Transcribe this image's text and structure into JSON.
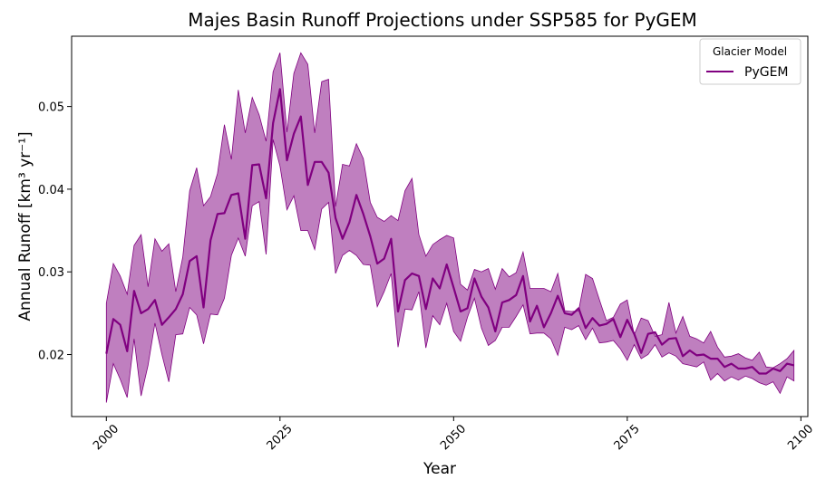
{
  "chart_data": {
    "type": "line",
    "title": "Majes Basin Runoff Projections under SSP585 for PyGEM",
    "xlabel": "Year",
    "ylabel": "Annual Runoff [km³ yr⁻¹]",
    "xlim": [
      1995,
      2101
    ],
    "ylim": [
      0.0125,
      0.0585
    ],
    "xticks": [
      2000,
      2025,
      2050,
      2075,
      2100
    ],
    "xtick_labels": [
      "2000",
      "2025",
      "2050",
      "2075",
      "2100"
    ],
    "yticks": [
      0.02,
      0.03,
      0.04,
      0.05
    ],
    "ytick_labels": [
      "0.02",
      "0.03",
      "0.04",
      "0.05"
    ],
    "grid": false,
    "legend": {
      "title": "Glacier Model",
      "position": "top-right"
    },
    "colors": {
      "line": "#800080",
      "band": "#800080",
      "band_opacity": 0.5
    },
    "series": [
      {
        "name": "PyGEM",
        "x": [
          2000,
          2001,
          2002,
          2003,
          2004,
          2005,
          2006,
          2007,
          2008,
          2009,
          2010,
          2011,
          2012,
          2013,
          2014,
          2015,
          2016,
          2017,
          2018,
          2019,
          2020,
          2021,
          2022,
          2023,
          2024,
          2025,
          2026,
          2027,
          2028,
          2029,
          2030,
          2031,
          2032,
          2033,
          2034,
          2035,
          2036,
          2037,
          2038,
          2039,
          2040,
          2041,
          2042,
          2043,
          2044,
          2045,
          2046,
          2047,
          2048,
          2049,
          2050,
          2051,
          2052,
          2053,
          2054,
          2055,
          2056,
          2057,
          2058,
          2059,
          2060,
          2061,
          2062,
          2063,
          2064,
          2065,
          2066,
          2067,
          2068,
          2069,
          2070,
          2071,
          2072,
          2073,
          2074,
          2075,
          2076,
          2077,
          2078,
          2079,
          2080,
          2081,
          2082,
          2083,
          2084,
          2085,
          2086,
          2087,
          2088,
          2089,
          2090,
          2091,
          2092,
          2093,
          2094,
          2095,
          2096,
          2097,
          2098,
          2099
        ],
        "mean": [
          0.0201,
          0.0243,
          0.0236,
          0.0204,
          0.0277,
          0.025,
          0.0255,
          0.0266,
          0.0236,
          0.0245,
          0.0255,
          0.0273,
          0.0313,
          0.0319,
          0.0257,
          0.0338,
          0.037,
          0.0371,
          0.0393,
          0.0395,
          0.034,
          0.0429,
          0.043,
          0.0389,
          0.048,
          0.0521,
          0.0435,
          0.0467,
          0.0488,
          0.0405,
          0.0433,
          0.0433,
          0.042,
          0.0365,
          0.034,
          0.036,
          0.0393,
          0.037,
          0.0343,
          0.031,
          0.0316,
          0.034,
          0.0252,
          0.029,
          0.0298,
          0.0295,
          0.0255,
          0.0292,
          0.028,
          0.0309,
          0.0281,
          0.0252,
          0.0256,
          0.0292,
          0.027,
          0.0257,
          0.0228,
          0.0263,
          0.0266,
          0.0272,
          0.0295,
          0.024,
          0.0259,
          0.0233,
          0.025,
          0.0271,
          0.025,
          0.0248,
          0.0256,
          0.0232,
          0.0244,
          0.0235,
          0.0237,
          0.0243,
          0.0221,
          0.0242,
          0.0225,
          0.0202,
          0.0225,
          0.0227,
          0.0212,
          0.0219,
          0.022,
          0.0198,
          0.0205,
          0.0199,
          0.02,
          0.0195,
          0.0195,
          0.0185,
          0.0189,
          0.0183,
          0.0183,
          0.0185,
          0.0177,
          0.0177,
          0.0183,
          0.018,
          0.0189,
          0.0187
        ],
        "lower": [
          0.0142,
          0.0189,
          0.017,
          0.0148,
          0.0219,
          0.015,
          0.0187,
          0.0238,
          0.02,
          0.0167,
          0.0224,
          0.0225,
          0.0257,
          0.0248,
          0.0213,
          0.0249,
          0.0248,
          0.0268,
          0.032,
          0.0341,
          0.0319,
          0.038,
          0.0385,
          0.0321,
          0.046,
          0.0428,
          0.0375,
          0.0392,
          0.035,
          0.035,
          0.0327,
          0.0376,
          0.0384,
          0.0298,
          0.032,
          0.0326,
          0.032,
          0.0309,
          0.0308,
          0.0258,
          0.0276,
          0.0298,
          0.0209,
          0.0255,
          0.0254,
          0.0276,
          0.0208,
          0.0247,
          0.0236,
          0.0262,
          0.0228,
          0.0216,
          0.0245,
          0.0268,
          0.0232,
          0.0211,
          0.0217,
          0.0233,
          0.0233,
          0.0246,
          0.026,
          0.0225,
          0.0226,
          0.0226,
          0.0219,
          0.0199,
          0.0233,
          0.023,
          0.0235,
          0.0218,
          0.0232,
          0.0214,
          0.0215,
          0.0217,
          0.0207,
          0.0193,
          0.0212,
          0.0195,
          0.02,
          0.0212,
          0.0197,
          0.0202,
          0.0198,
          0.0189,
          0.0187,
          0.0185,
          0.0191,
          0.0169,
          0.0177,
          0.0168,
          0.0173,
          0.0169,
          0.0174,
          0.0171,
          0.0166,
          0.0163,
          0.0167,
          0.0153,
          0.0173,
          0.0168
        ],
        "upper": [
          0.0262,
          0.031,
          0.0295,
          0.0273,
          0.0332,
          0.0345,
          0.0282,
          0.034,
          0.0325,
          0.0334,
          0.0276,
          0.0318,
          0.0398,
          0.0426,
          0.038,
          0.0391,
          0.0419,
          0.0478,
          0.0436,
          0.052,
          0.0468,
          0.0511,
          0.049,
          0.0458,
          0.0542,
          0.0565,
          0.0469,
          0.054,
          0.0565,
          0.0551,
          0.0468,
          0.053,
          0.0533,
          0.0379,
          0.043,
          0.0428,
          0.0455,
          0.0437,
          0.0384,
          0.0366,
          0.0361,
          0.0368,
          0.0362,
          0.0398,
          0.0413,
          0.0345,
          0.0319,
          0.0333,
          0.0339,
          0.0344,
          0.0341,
          0.0285,
          0.0278,
          0.0303,
          0.03,
          0.0304,
          0.0279,
          0.0304,
          0.0294,
          0.0299,
          0.0324,
          0.028,
          0.028,
          0.028,
          0.0276,
          0.0298,
          0.0253,
          0.0252,
          0.0253,
          0.0297,
          0.0292,
          0.0266,
          0.0241,
          0.0245,
          0.0261,
          0.0266,
          0.0224,
          0.0244,
          0.0241,
          0.0222,
          0.0224,
          0.0263,
          0.0226,
          0.0246,
          0.0222,
          0.0219,
          0.0214,
          0.0228,
          0.0209,
          0.0197,
          0.0198,
          0.0201,
          0.0196,
          0.0193,
          0.0203,
          0.0185,
          0.0184,
          0.0189,
          0.0195,
          0.0205
        ]
      }
    ]
  }
}
